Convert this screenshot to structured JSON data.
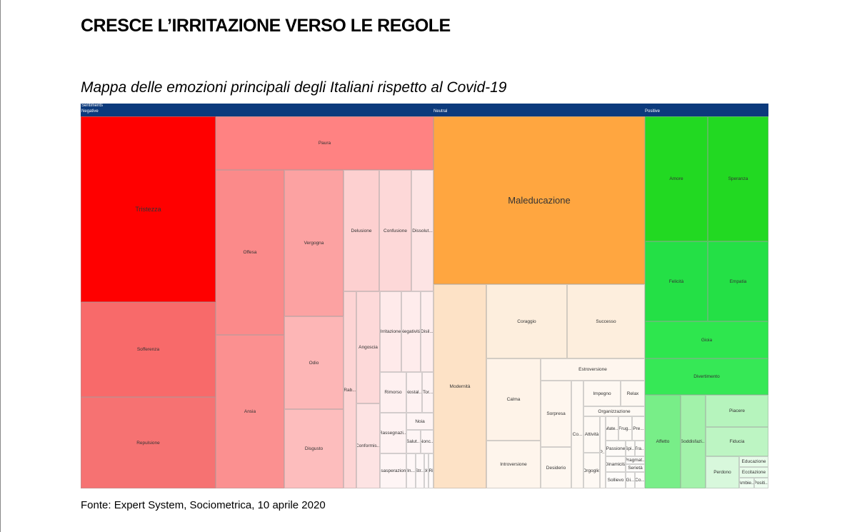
{
  "title": "CRESCE L’IRRITAZIONE VERSO LE REGOLE",
  "subtitle": "Mappa delle emozioni principali degli Italiani rispetto al Covid-19",
  "source": "Fonte: Expert System, Sociometrica,  10 aprile 2020",
  "chart_data": {
    "type": "treemap",
    "root": "Sentiments",
    "groups": [
      "Negative",
      "Neutral",
      "Positive"
    ],
    "cells": [
      {
        "name": "Tristezza",
        "group": "Negative",
        "color": "#ff0000"
      },
      {
        "name": "Sofferenza",
        "group": "Negative",
        "color": "#f86a6a"
      },
      {
        "name": "Repulsione",
        "group": "Negative",
        "color": "#f67272"
      },
      {
        "name": "Paura",
        "group": "Negative",
        "color": "#ff8282"
      },
      {
        "name": "Offesa",
        "group": "Negative",
        "color": "#fb8a8a"
      },
      {
        "name": "Ansia",
        "group": "Negative",
        "color": "#fb9090"
      },
      {
        "name": "Vergogna",
        "group": "Negative",
        "color": "#fca2a2"
      },
      {
        "name": "Odio",
        "group": "Negative",
        "color": "#fdb6b6"
      },
      {
        "name": "Disgusto",
        "group": "Negative",
        "color": "#fdbdbd"
      },
      {
        "name": "Delusione",
        "group": "Negative",
        "color": "#fdd0d0"
      },
      {
        "name": "Confusione",
        "group": "Negative",
        "color": "#fdd8d8"
      },
      {
        "name": "Dissolut...",
        "group": "Negative",
        "color": "#fde4e4"
      },
      {
        "name": "Rab...",
        "group": "Negative",
        "color": "#fdd4d4"
      },
      {
        "name": "Angoscia",
        "group": "Negative",
        "color": "#fdd9d9"
      },
      {
        "name": "Conformis...",
        "group": "Negative",
        "color": "#fde3e3"
      },
      {
        "name": "Irritazione",
        "group": "Negative",
        "color": "#feeaea"
      },
      {
        "name": "Negatività",
        "group": "Negative",
        "color": "#feecec"
      },
      {
        "name": "Disil...",
        "group": "Negative",
        "color": "#feeeee"
      },
      {
        "name": "Rimorso",
        "group": "Negative",
        "color": "#fef0f0"
      },
      {
        "name": "Nostal...",
        "group": "Negative",
        "color": "#fef2f2"
      },
      {
        "name": "Tor...",
        "group": "Negative",
        "color": "#fef3f3"
      },
      {
        "name": "Rassegnazi...",
        "group": "Negative",
        "color": "#fef2f2"
      },
      {
        "name": "Noia",
        "group": "Negative",
        "color": "#fef4f4"
      },
      {
        "name": "Salut...",
        "group": "Negative",
        "color": "#fef5f5"
      },
      {
        "name": "Nonc...",
        "group": "Negative",
        "color": "#fef6f6"
      },
      {
        "name": "Esasperazione",
        "group": "Negative",
        "color": "#fef5f5"
      },
      {
        "name": "In...",
        "group": "Negative",
        "color": "#fef7f7"
      },
      {
        "name": "Str...",
        "group": "Negative",
        "color": "#fef8f8"
      },
      {
        "name": "Diff",
        "group": "Negative",
        "color": "#fef9f9"
      },
      {
        "name": "Ri",
        "group": "Negative",
        "color": "#fefafa"
      },
      {
        "name": "Maleducazione",
        "group": "Neutral",
        "color": "#ffa640"
      },
      {
        "name": "Modernità",
        "group": "Neutral",
        "color": "#fde2c6"
      },
      {
        "name": "Coraggio",
        "group": "Neutral",
        "color": "#fdeedd"
      },
      {
        "name": "Successo",
        "group": "Neutral",
        "color": "#fdeedd"
      },
      {
        "name": "Calma",
        "group": "Neutral",
        "color": "#fef3e8"
      },
      {
        "name": "Introversione",
        "group": "Neutral",
        "color": "#fef5ec"
      },
      {
        "name": "Estroversione",
        "group": "Neutral",
        "color": "#fef6ee"
      },
      {
        "name": "Sorpresa",
        "group": "Neutral",
        "color": "#fef6ee"
      },
      {
        "name": "Desiderio",
        "group": "Neutral",
        "color": "#fef7f0"
      },
      {
        "name": "Co...",
        "group": "Neutral",
        "color": "#fef8f2"
      },
      {
        "name": "Impegno",
        "group": "Neutral",
        "color": "#fef8f2"
      },
      {
        "name": "Relax",
        "group": "Neutral",
        "color": "#fef8f2"
      },
      {
        "name": "Organizzazione",
        "group": "Neutral",
        "color": "#fef9f4"
      },
      {
        "name": "Attività",
        "group": "Neutral",
        "color": "#fef9f4"
      },
      {
        "name": "Orgoglio",
        "group": "Neutral",
        "color": "#fef9f4"
      },
      {
        "name": "P...",
        "group": "Neutral",
        "color": "#fefaf6"
      },
      {
        "name": "Mate...",
        "group": "Neutral",
        "color": "#fefaf6"
      },
      {
        "name": "Frug...",
        "group": "Neutral",
        "color": "#fefaf6"
      },
      {
        "name": "Pre...",
        "group": "Neutral",
        "color": "#fefaf6"
      },
      {
        "name": "Passione",
        "group": "Neutral",
        "color": "#fefbf8"
      },
      {
        "name": "Spi...",
        "group": "Neutral",
        "color": "#fefbf8"
      },
      {
        "name": "Tra...",
        "group": "Neutral",
        "color": "#fefbf8"
      },
      {
        "name": "Dinamicità",
        "group": "Neutral",
        "color": "#fefbf8"
      },
      {
        "name": "Pragmat...",
        "group": "Neutral",
        "color": "#fefcfa"
      },
      {
        "name": "Serietà",
        "group": "Neutral",
        "color": "#fefcfa"
      },
      {
        "name": "Sollievo",
        "group": "Neutral",
        "color": "#fefcfa"
      },
      {
        "name": "Gi...",
        "group": "Neutral",
        "color": "#fefcfa"
      },
      {
        "name": "Co...",
        "group": "Neutral",
        "color": "#fefcfa"
      },
      {
        "name": "Amore",
        "group": "Positive",
        "color": "#22d922"
      },
      {
        "name": "Speranza",
        "group": "Positive",
        "color": "#22d922"
      },
      {
        "name": "Felicità",
        "group": "Positive",
        "color": "#24e046"
      },
      {
        "name": "Empatia",
        "group": "Positive",
        "color": "#24e046"
      },
      {
        "name": "Gioia",
        "group": "Positive",
        "color": "#2ee64e"
      },
      {
        "name": "Divertimento",
        "group": "Positive",
        "color": "#36e856"
      },
      {
        "name": "Affetto",
        "group": "Positive",
        "color": "#78ee88"
      },
      {
        "name": "Soddisfazi...",
        "group": "Positive",
        "color": "#a2f2aa"
      },
      {
        "name": "Piacere",
        "group": "Positive",
        "color": "#b6f4bd"
      },
      {
        "name": "Fiducia",
        "group": "Positive",
        "color": "#bdf5c3"
      },
      {
        "name": "Perdono",
        "group": "Positive",
        "color": "#d8f8dc"
      },
      {
        "name": "Educazione",
        "group": "Positive",
        "color": "#e8fbea"
      },
      {
        "name": "Eccitazione",
        "group": "Positive",
        "color": "#e8fbea"
      },
      {
        "name": "Ambie...",
        "group": "Positive",
        "color": "#eefcf0"
      },
      {
        "name": "Positi...",
        "group": "Positive",
        "color": "#eefcf0"
      }
    ]
  }
}
